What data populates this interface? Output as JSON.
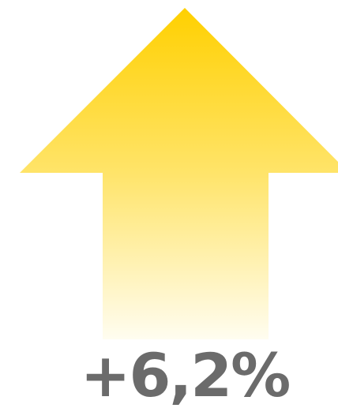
{
  "label": "+6,2%"
}
